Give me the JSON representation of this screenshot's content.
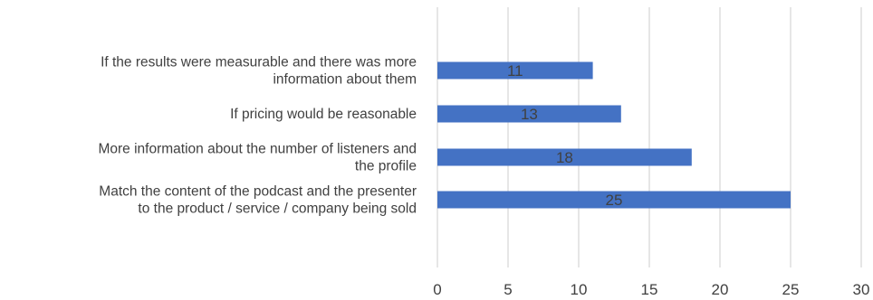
{
  "chart_data": {
    "type": "bar",
    "orientation": "horizontal",
    "categories": [
      [
        "If the results were measurable and there was more",
        "information about them"
      ],
      [
        "If pricing would be reasonable"
      ],
      [
        "More information about the number of listeners and",
        "the profile"
      ],
      [
        "Match the content of the podcast and the presenter",
        "to the product / service / company being sold"
      ]
    ],
    "values": [
      11,
      13,
      18,
      25
    ],
    "data_labels": [
      "11",
      "13",
      "18",
      "25"
    ],
    "xlim": [
      0,
      30
    ],
    "xticks": [
      0,
      5,
      10,
      15,
      20,
      25,
      30
    ],
    "xtick_labels": [
      "0",
      "5",
      "10",
      "15",
      "20",
      "25",
      "30"
    ],
    "bar_color": "#4472c4",
    "grid": true,
    "legend": "none"
  }
}
